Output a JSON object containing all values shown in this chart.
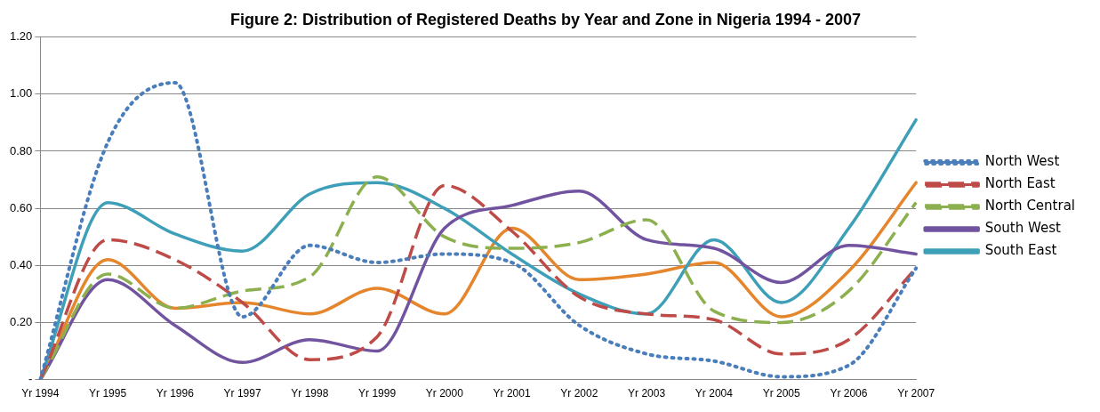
{
  "chart_data": {
    "type": "line",
    "title": "Figure 2: Distribution of Registered Deaths by Year and Zone in Nigeria 1994 - 2007",
    "categories": [
      "Yr 1994",
      "Yr 1995",
      "Yr 1996",
      "Yr 1997",
      "Yr 1998",
      "Yr 1999",
      "Yr 2000",
      "Yr 2001",
      "Yr 2002",
      "Yr 2003",
      "Yr 2004",
      "Yr 2005",
      "Yr 2006",
      "Yr 2007"
    ],
    "ylim": [
      0,
      1.2
    ],
    "yticks": [
      {
        "value": 0,
        "label": "-"
      },
      {
        "value": 0.2,
        "label": "0.20"
      },
      {
        "value": 0.4,
        "label": "0.40"
      },
      {
        "value": 0.6,
        "label": "0.60"
      },
      {
        "value": 0.8,
        "label": "0.80"
      },
      {
        "value": 1.0,
        "label": "1.00"
      },
      {
        "value": 1.2,
        "label": "1.20"
      }
    ],
    "grid": "y",
    "legend": "right",
    "marker": "none",
    "series": [
      {
        "name": "North West",
        "color": "#4a7ebb",
        "line_style": "dotted",
        "values": [
          0,
          0.83,
          1.04,
          0.22,
          0.47,
          0.41,
          0.44,
          0.41,
          0.19,
          0.09,
          0.065,
          0.01,
          0.05,
          0.39
        ]
      },
      {
        "name": "North East",
        "color": "#be4b48",
        "line_style": "dashed",
        "values": [
          0,
          0.49,
          0.42,
          0.27,
          0.07,
          0.15,
          0.68,
          0.52,
          0.29,
          0.23,
          0.21,
          0.09,
          0.14,
          0.39
        ]
      },
      {
        "name": "North Central",
        "color": "#8cb04f",
        "line_style": "dashed",
        "values": [
          0,
          0.37,
          0.25,
          0.31,
          0.36,
          0.71,
          0.5,
          0.46,
          0.48,
          0.56,
          0.24,
          0.2,
          0.31,
          0.62
        ]
      },
      {
        "name": "South West",
        "color": "#7153a0",
        "line_style": "solid",
        "values": [
          0,
          0.35,
          0.19,
          0.06,
          0.14,
          0.1,
          0.53,
          0.61,
          0.66,
          0.49,
          0.46,
          0.34,
          0.47,
          0.44
        ]
      },
      {
        "name": "South East",
        "color": "#3e9fb8",
        "line_style": "solid",
        "values": [
          0,
          0.62,
          0.51,
          0.45,
          0.65,
          0.69,
          0.6,
          0.44,
          0.3,
          0.23,
          0.49,
          0.27,
          0.53,
          0.91
        ]
      },
      {
        "color": "#e5852c",
        "line_style": "solid",
        "values": [
          0,
          0.42,
          0.25,
          0.27,
          0.23,
          0.32,
          0.23,
          0.53,
          0.35,
          0.37,
          0.41,
          0.22,
          0.38,
          0.69
        ]
      }
    ]
  }
}
